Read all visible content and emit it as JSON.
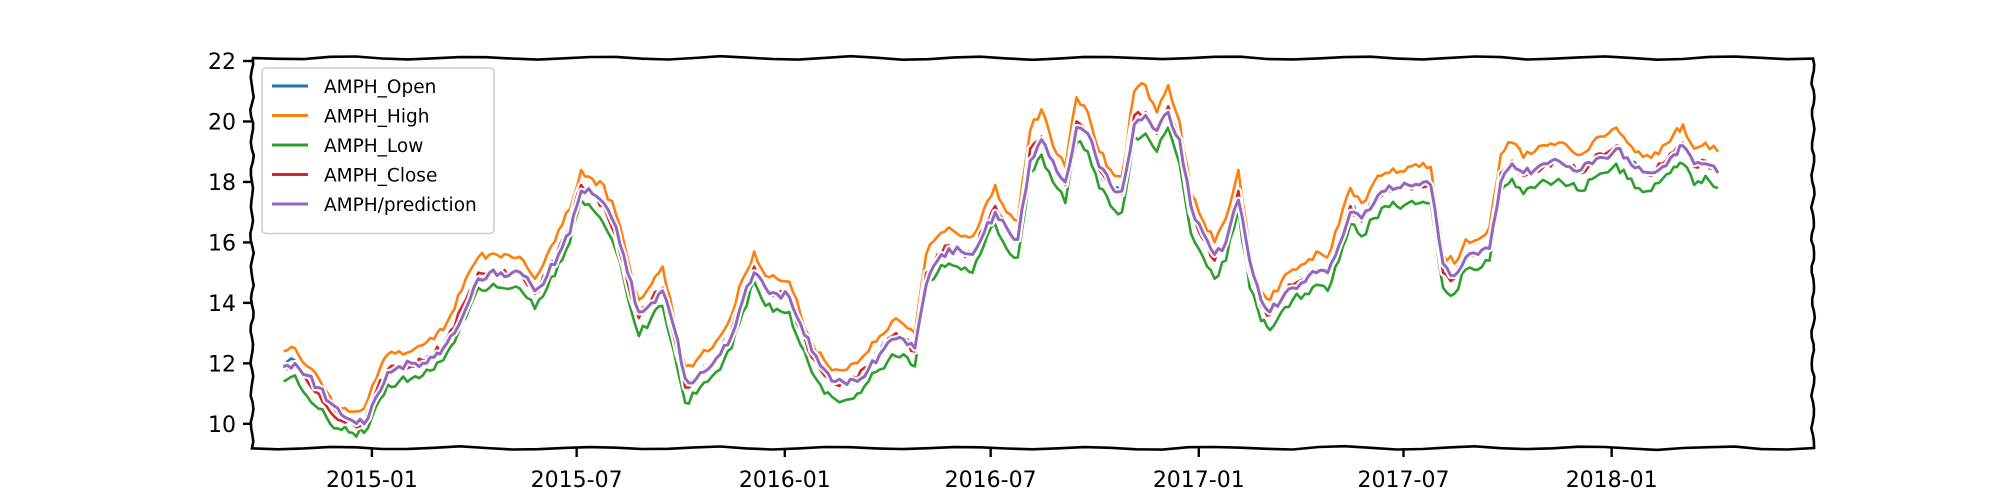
{
  "chart_data": {
    "type": "line",
    "title": "",
    "xlabel": "",
    "ylabel": "",
    "x_ticks": [
      "2015-01",
      "2015-07",
      "2016-01",
      "2016-07",
      "2017-01",
      "2017-07",
      "2018-01"
    ],
    "y_ticks": [
      10,
      12,
      14,
      16,
      18,
      20,
      22
    ],
    "xlim": [
      "2014-09-17",
      "2018-06-28"
    ],
    "ylim": [
      9.2,
      22.1
    ],
    "grid": false,
    "legend_position": "top-left",
    "x": [
      "2014-10-15",
      "2014-10-25",
      "2014-11-05",
      "2014-11-15",
      "2014-11-25",
      "2014-12-05",
      "2014-12-15",
      "2014-12-25",
      "2015-01-05",
      "2015-01-15",
      "2015-01-25",
      "2015-02-05",
      "2015-02-15",
      "2015-02-25",
      "2015-03-05",
      "2015-03-15",
      "2015-03-25",
      "2015-04-05",
      "2015-04-15",
      "2015-04-25",
      "2015-05-05",
      "2015-05-15",
      "2015-05-25",
      "2015-06-05",
      "2015-06-15",
      "2015-06-25",
      "2015-07-05",
      "2015-07-15",
      "2015-07-25",
      "2015-08-05",
      "2015-08-15",
      "2015-08-25",
      "2015-09-05",
      "2015-09-15",
      "2015-09-25",
      "2015-10-05",
      "2015-10-15",
      "2015-10-25",
      "2015-11-05",
      "2015-11-15",
      "2015-11-25",
      "2015-12-05",
      "2015-12-15",
      "2015-12-25",
      "2016-01-05",
      "2016-01-15",
      "2016-01-25",
      "2016-02-05",
      "2016-02-15",
      "2016-02-25",
      "2016-03-05",
      "2016-03-15",
      "2016-03-25",
      "2016-04-05",
      "2016-04-15",
      "2016-04-25",
      "2016-05-05",
      "2016-05-15",
      "2016-05-25",
      "2016-06-05",
      "2016-06-15",
      "2016-06-25",
      "2016-07-05",
      "2016-07-15",
      "2016-07-25",
      "2016-08-05",
      "2016-08-15",
      "2016-08-25",
      "2016-09-05",
      "2016-09-15",
      "2016-09-25",
      "2016-10-05",
      "2016-10-15",
      "2016-10-25",
      "2016-11-05",
      "2016-11-15",
      "2016-11-25",
      "2016-12-05",
      "2016-12-15",
      "2016-12-25",
      "2017-01-05",
      "2017-01-15",
      "2017-01-25",
      "2017-02-05",
      "2017-02-15",
      "2017-02-25",
      "2017-03-05",
      "2017-03-15",
      "2017-03-25",
      "2017-04-05",
      "2017-04-15",
      "2017-04-25",
      "2017-05-05",
      "2017-05-15",
      "2017-05-25",
      "2017-06-05",
      "2017-06-15",
      "2017-06-25",
      "2017-07-05",
      "2017-07-15",
      "2017-07-25",
      "2017-08-05",
      "2017-08-15",
      "2017-08-25",
      "2017-09-05",
      "2017-09-15",
      "2017-09-25",
      "2017-10-05",
      "2017-10-15",
      "2017-10-25",
      "2017-11-05",
      "2017-11-15",
      "2017-11-25",
      "2017-12-05",
      "2017-12-15",
      "2017-12-25",
      "2018-01-05",
      "2018-01-15",
      "2018-01-25",
      "2018-02-05",
      "2018-02-15",
      "2018-02-25",
      "2018-03-05",
      "2018-03-15",
      "2018-03-25",
      "2018-04-05"
    ],
    "series": [
      {
        "name": "AMPH_Open",
        "color": "#1f77b4",
        "values": [
          11.9,
          12.1,
          11.4,
          11.0,
          10.5,
          10.1,
          10.0,
          10.0,
          11.0,
          11.8,
          11.9,
          12.0,
          12.1,
          12.3,
          12.6,
          13.2,
          14.0,
          15.0,
          15.1,
          15.0,
          15.0,
          14.9,
          14.3,
          15.0,
          15.8,
          16.5,
          18.0,
          17.6,
          17.2,
          16.3,
          14.8,
          13.5,
          14.0,
          14.5,
          13.0,
          11.3,
          11.6,
          11.9,
          12.4,
          13.0,
          14.2,
          15.2,
          14.4,
          14.3,
          14.2,
          13.1,
          12.2,
          11.6,
          11.3,
          11.3,
          11.5,
          11.9,
          12.4,
          12.9,
          12.8,
          12.4,
          15.0,
          15.6,
          15.9,
          15.7,
          15.6,
          16.5,
          17.2,
          16.4,
          16.0,
          19.0,
          19.5,
          18.6,
          17.9,
          20.0,
          19.6,
          18.4,
          17.8,
          17.6,
          20.2,
          20.3,
          19.6,
          20.5,
          19.3,
          17.0,
          16.1,
          15.4,
          16.1,
          17.7,
          15.1,
          13.9,
          13.6,
          14.2,
          14.6,
          14.8,
          15.1,
          15.0,
          16.0,
          17.2,
          16.7,
          17.4,
          17.8,
          17.8,
          17.9,
          17.9,
          17.9,
          15.0,
          14.8,
          15.6,
          15.6,
          15.9,
          18.3,
          18.7,
          18.2,
          18.4,
          18.6,
          18.7,
          18.5,
          18.3,
          18.7,
          18.9,
          19.2,
          18.7,
          18.4,
          18.2,
          18.6,
          19.0,
          19.2,
          18.5,
          18.7,
          18.3
        ]
      },
      {
        "name": "AMPH_High",
        "color": "#ff7f0e",
        "values": [
          12.4,
          12.5,
          11.9,
          11.5,
          10.9,
          10.5,
          10.4,
          10.5,
          11.5,
          12.3,
          12.4,
          12.4,
          12.6,
          12.8,
          13.1,
          13.8,
          14.8,
          15.5,
          15.6,
          15.5,
          15.5,
          15.4,
          14.8,
          15.6,
          16.4,
          17.1,
          18.4,
          18.1,
          17.9,
          16.9,
          15.5,
          14.1,
          14.6,
          15.2,
          13.5,
          11.9,
          12.1,
          12.4,
          12.9,
          13.6,
          14.8,
          15.7,
          14.9,
          14.8,
          14.7,
          13.6,
          12.7,
          12.1,
          11.8,
          11.8,
          12.0,
          12.4,
          12.9,
          13.4,
          13.3,
          13.0,
          15.6,
          16.2,
          16.5,
          16.2,
          16.2,
          17.1,
          17.9,
          17.0,
          16.7,
          19.7,
          20.4,
          19.2,
          18.5,
          20.8,
          20.3,
          19.0,
          18.4,
          18.2,
          21.0,
          21.2,
          20.3,
          21.2,
          20.0,
          17.6,
          16.7,
          16.0,
          16.8,
          18.4,
          15.7,
          14.4,
          14.1,
          14.7,
          15.1,
          15.3,
          15.7,
          15.5,
          16.6,
          17.8,
          17.3,
          18.0,
          18.3,
          18.3,
          18.5,
          18.5,
          18.5,
          15.6,
          15.3,
          16.1,
          16.1,
          16.5,
          18.9,
          19.3,
          18.8,
          19.0,
          19.2,
          19.3,
          19.1,
          18.9,
          19.3,
          19.5,
          19.8,
          19.3,
          19.0,
          18.8,
          19.2,
          19.6,
          19.9,
          19.1,
          19.3,
          19.0
        ]
      },
      {
        "name": "AMPH_Low",
        "color": "#2ca02c",
        "values": [
          11.4,
          11.6,
          10.9,
          10.5,
          10.0,
          9.8,
          9.7,
          9.7,
          10.6,
          11.3,
          11.4,
          11.5,
          11.6,
          11.8,
          12.1,
          12.7,
          13.5,
          14.5,
          14.5,
          14.5,
          14.5,
          14.3,
          13.8,
          14.5,
          15.3,
          16.0,
          17.4,
          17.1,
          16.6,
          15.7,
          14.2,
          12.9,
          13.5,
          13.9,
          12.4,
          10.7,
          11.0,
          11.4,
          11.8,
          12.5,
          13.7,
          14.7,
          13.9,
          13.8,
          13.7,
          12.6,
          11.7,
          11.0,
          10.8,
          10.8,
          11.0,
          11.4,
          11.8,
          12.3,
          12.3,
          11.9,
          14.4,
          15.0,
          15.3,
          15.1,
          15.0,
          15.9,
          16.6,
          15.8,
          15.5,
          18.3,
          18.9,
          18.0,
          17.3,
          19.3,
          19.0,
          17.8,
          17.2,
          17.0,
          19.5,
          19.6,
          19.0,
          19.8,
          18.6,
          16.3,
          15.5,
          14.8,
          15.4,
          17.1,
          14.5,
          13.4,
          13.1,
          13.7,
          14.1,
          14.3,
          14.6,
          14.4,
          15.4,
          16.6,
          16.2,
          16.8,
          17.2,
          17.2,
          17.3,
          17.3,
          17.3,
          14.5,
          14.3,
          15.1,
          15.1,
          15.4,
          17.7,
          18.1,
          17.6,
          17.8,
          18.0,
          18.1,
          17.9,
          17.7,
          18.1,
          18.3,
          18.6,
          18.1,
          17.8,
          17.7,
          18.1,
          18.5,
          18.6,
          17.9,
          18.2,
          17.8
        ]
      },
      {
        "name": "AMPH_Close",
        "color": "#d62728",
        "values": [
          11.9,
          12.0,
          11.4,
          11.0,
          10.4,
          10.1,
          10.0,
          10.0,
          11.1,
          11.8,
          11.9,
          11.9,
          12.1,
          12.3,
          12.6,
          13.2,
          14.1,
          15.0,
          15.0,
          15.0,
          15.0,
          14.8,
          14.3,
          15.0,
          15.8,
          16.6,
          17.9,
          17.6,
          17.2,
          16.2,
          14.7,
          13.5,
          14.1,
          14.5,
          12.9,
          11.2,
          11.6,
          11.9,
          12.4,
          13.1,
          14.3,
          15.2,
          14.4,
          14.3,
          14.2,
          13.1,
          12.2,
          11.6,
          11.3,
          11.3,
          11.5,
          11.9,
          12.4,
          12.9,
          12.8,
          12.4,
          15.0,
          15.6,
          15.9,
          15.7,
          15.6,
          16.5,
          17.2,
          16.4,
          16.1,
          19.1,
          19.5,
          18.6,
          17.9,
          20.0,
          19.6,
          18.4,
          17.8,
          17.6,
          20.2,
          20.3,
          19.6,
          20.5,
          19.3,
          17.0,
          16.1,
          15.4,
          16.1,
          17.7,
          15.1,
          13.9,
          13.6,
          14.2,
          14.6,
          14.8,
          15.1,
          15.0,
          16.0,
          17.2,
          16.7,
          17.4,
          17.8,
          17.8,
          17.9,
          17.9,
          17.9,
          15.0,
          14.8,
          15.6,
          15.6,
          15.9,
          18.3,
          18.7,
          18.2,
          18.4,
          18.6,
          18.7,
          18.5,
          18.3,
          18.7,
          18.9,
          19.2,
          18.7,
          18.4,
          18.2,
          18.6,
          19.0,
          19.3,
          18.5,
          18.7,
          18.3
        ]
      },
      {
        "name": "AMPH/prediction",
        "color": "#9467bd",
        "values": [
          11.9,
          12.0,
          11.6,
          11.2,
          10.7,
          10.3,
          10.1,
          10.0,
          10.9,
          11.7,
          11.9,
          12.0,
          12.0,
          12.2,
          12.5,
          13.0,
          13.8,
          14.8,
          15.0,
          15.0,
          15.0,
          14.9,
          14.4,
          14.9,
          15.6,
          16.3,
          17.7,
          17.6,
          17.3,
          16.5,
          15.0,
          13.7,
          14.0,
          14.4,
          13.2,
          11.5,
          11.5,
          11.8,
          12.3,
          12.9,
          14.1,
          15.0,
          14.5,
          14.3,
          14.2,
          13.3,
          12.4,
          11.8,
          11.4,
          11.3,
          11.4,
          11.8,
          12.3,
          12.8,
          12.8,
          12.5,
          14.6,
          15.4,
          15.8,
          15.7,
          15.6,
          16.3,
          17.0,
          16.5,
          16.1,
          18.7,
          19.4,
          18.7,
          18.0,
          19.8,
          19.6,
          18.5,
          17.9,
          17.7,
          19.9,
          20.2,
          19.7,
          20.3,
          19.4,
          17.2,
          16.3,
          15.6,
          16.0,
          17.4,
          15.4,
          14.1,
          13.7,
          14.1,
          14.5,
          14.7,
          15.0,
          15.0,
          15.9,
          17.0,
          16.8,
          17.3,
          17.7,
          17.8,
          17.9,
          17.9,
          17.9,
          15.3,
          14.9,
          15.5,
          15.6,
          15.8,
          18.0,
          18.6,
          18.3,
          18.4,
          18.6,
          18.7,
          18.5,
          18.4,
          18.6,
          18.8,
          19.1,
          18.8,
          18.5,
          18.3,
          18.5,
          18.9,
          19.2,
          18.6,
          18.6,
          18.3
        ]
      }
    ]
  }
}
